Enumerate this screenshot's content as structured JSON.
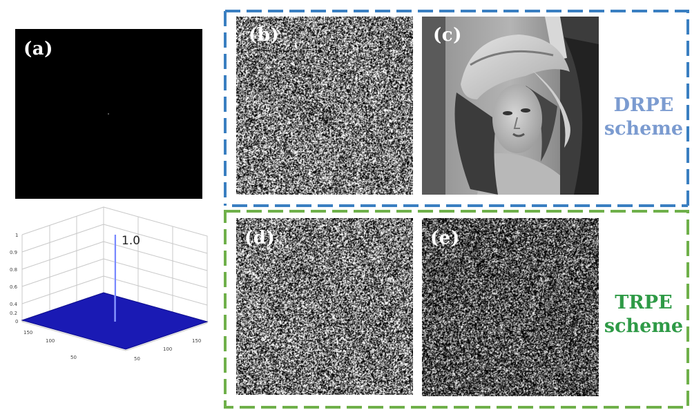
{
  "panels": {
    "a": {
      "label": "(a)",
      "peak_label": "1.0",
      "z_ticks": [
        "1",
        "0.9",
        "0.8",
        "0.6",
        "0.4",
        "0.2",
        "0"
      ],
      "x_ticks": [
        "150",
        "100",
        "50"
      ],
      "y_ticks": [
        "50",
        "100",
        "150"
      ]
    },
    "b": {
      "label": "(b)"
    },
    "c": {
      "label": "(c)"
    },
    "d": {
      "label": "(d)"
    },
    "e": {
      "label": "(e)"
    }
  },
  "groups": {
    "drpe": {
      "line1": "DRPE",
      "line2": "scheme",
      "color": "#7b9bd0",
      "border": "#3a7fc1"
    },
    "trpe": {
      "line1": "TRPE",
      "line2": "scheme",
      "color": "#2e9a46",
      "border": "#6fb04a"
    }
  },
  "plot_colors": {
    "surface": "#1a1ab4",
    "peak": "#5b6cff",
    "grid": "#c8c8c8"
  }
}
